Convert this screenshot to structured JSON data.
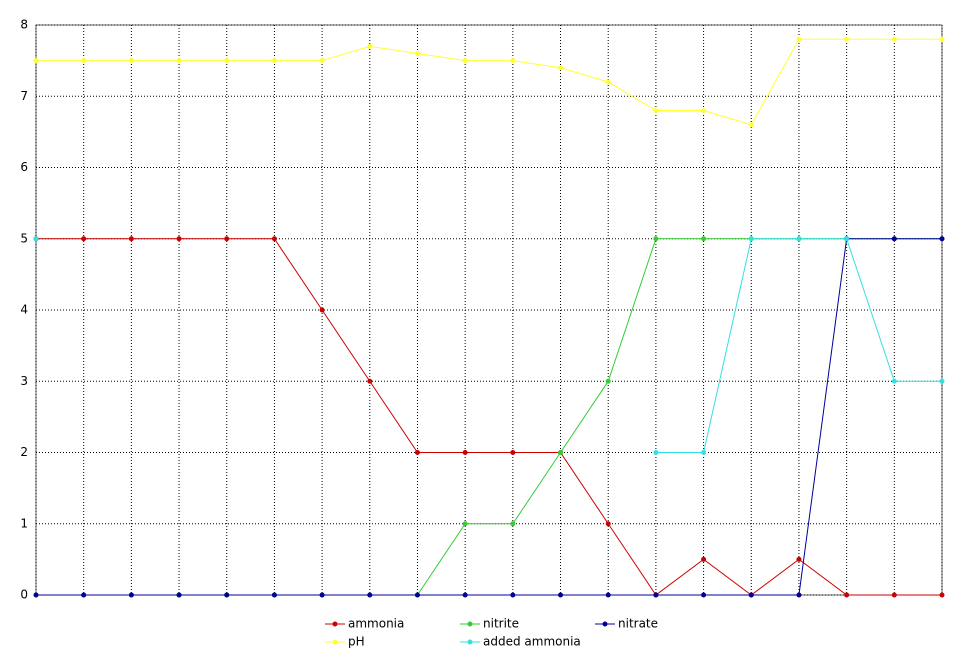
{
  "chart_data": {
    "type": "line",
    "categories": [
      null,
      null,
      null,
      null,
      null,
      null,
      null,
      null,
      null,
      null,
      null,
      null,
      null,
      null,
      null,
      null,
      null,
      null,
      null,
      null
    ],
    "series": [
      {
        "name": "ammonia",
        "color": "#cc0000",
        "values": [
          5,
          5,
          5,
          5,
          5,
          5,
          4,
          3,
          2,
          2,
          2,
          2,
          1,
          0,
          0.5,
          0,
          0.5,
          0,
          0,
          0
        ]
      },
      {
        "name": "nitrite",
        "color": "#33cc33",
        "values": [
          0,
          0,
          0,
          0,
          0,
          0,
          0,
          0,
          0,
          1,
          1,
          2,
          3,
          5,
          5,
          5,
          5,
          5,
          5,
          5
        ]
      },
      {
        "name": "nitrate",
        "color": "#000099",
        "values": [
          0,
          0,
          0,
          0,
          0,
          0,
          0,
          0,
          0,
          0,
          0,
          0,
          0,
          0,
          0,
          0,
          0,
          5,
          5,
          5
        ]
      },
      {
        "name": "pH",
        "color": "#ffff33",
        "values": [
          7.5,
          7.5,
          7.5,
          7.5,
          7.5,
          7.5,
          7.5,
          7.7,
          7.6,
          7.5,
          7.5,
          7.4,
          7.2,
          6.8,
          6.8,
          6.6,
          7.8,
          7.8,
          7.8,
          7.8
        ]
      },
      {
        "name": "added ammonia",
        "color": "#33e0e0",
        "values": [
          5,
          null,
          null,
          null,
          null,
          null,
          null,
          null,
          null,
          null,
          null,
          null,
          null,
          2,
          2,
          5,
          5,
          5,
          3,
          3
        ]
      }
    ],
    "ylim": [
      0,
      8
    ],
    "yticks": [
      0,
      1,
      2,
      3,
      4,
      5,
      6,
      7,
      8
    ],
    "grid": true,
    "legend": "bottom"
  }
}
